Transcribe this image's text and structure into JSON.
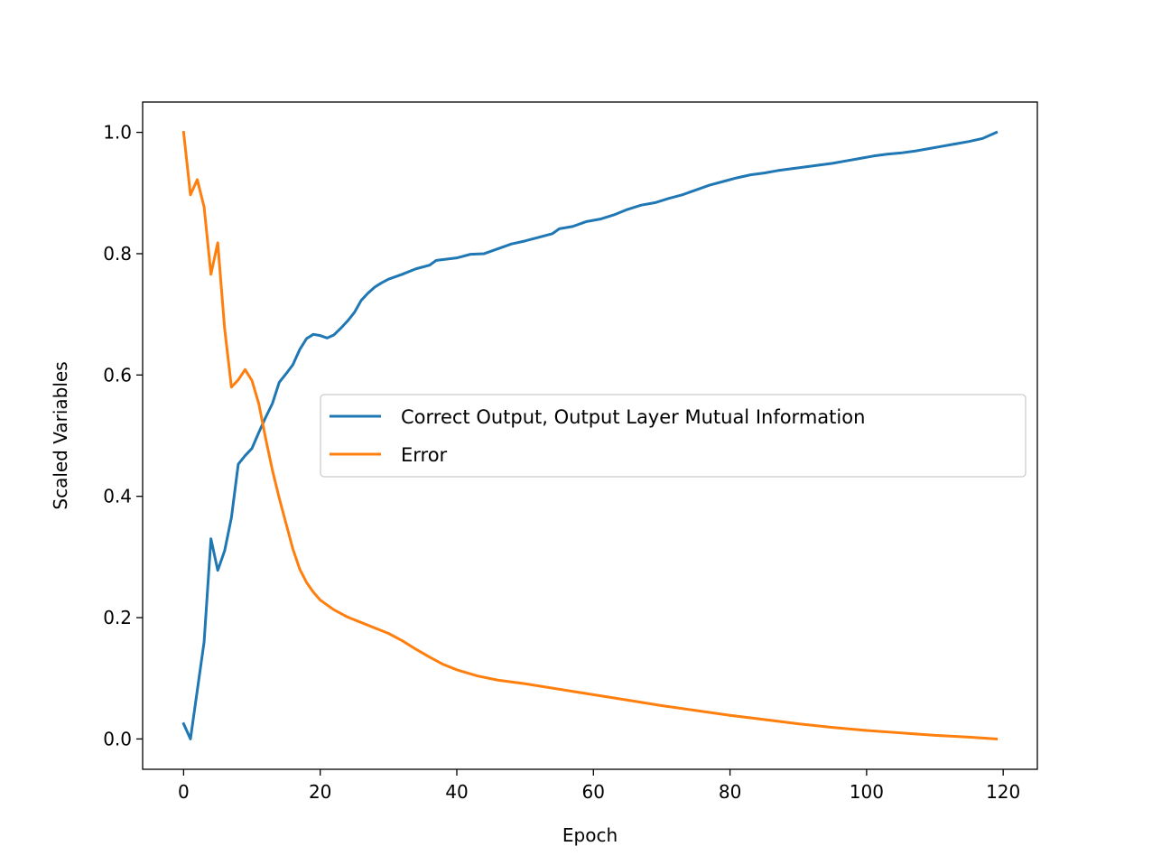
{
  "chart_data": {
    "type": "line",
    "title": "",
    "xlabel": "Epoch",
    "ylabel": "Scaled Variables",
    "xlim": [
      -6,
      125
    ],
    "ylim": [
      -0.05,
      1.05
    ],
    "xticks": [
      0,
      20,
      40,
      60,
      80,
      100,
      120
    ],
    "xtick_labels": [
      "0",
      "20",
      "40",
      "60",
      "80",
      "100",
      "120"
    ],
    "yticks": [
      0.0,
      0.2,
      0.4,
      0.6,
      0.8,
      1.0
    ],
    "ytick_labels": [
      "0.0",
      "0.2",
      "0.4",
      "0.6",
      "0.8",
      "1.0"
    ],
    "grid": false,
    "legend_position": "center-right",
    "series": [
      {
        "name": "Correct Output, Output Layer Mutual Information",
        "color": "#1f77b4",
        "points": [
          [
            0,
            0.025
          ],
          [
            1,
            0.0
          ],
          [
            2,
            0.08
          ],
          [
            3,
            0.16
          ],
          [
            4,
            0.33
          ],
          [
            5,
            0.278
          ],
          [
            6,
            0.31
          ],
          [
            7,
            0.365
          ],
          [
            8,
            0.453
          ],
          [
            9,
            0.467
          ],
          [
            10,
            0.479
          ],
          [
            11,
            0.505
          ],
          [
            12,
            0.53
          ],
          [
            13,
            0.553
          ],
          [
            14,
            0.588
          ],
          [
            15,
            0.602
          ],
          [
            16,
            0.617
          ],
          [
            17,
            0.642
          ],
          [
            18,
            0.66
          ],
          [
            19,
            0.667
          ],
          [
            20,
            0.665
          ],
          [
            21,
            0.661
          ],
          [
            22,
            0.666
          ],
          [
            23,
            0.677
          ],
          [
            24,
            0.689
          ],
          [
            25,
            0.703
          ],
          [
            26,
            0.723
          ],
          [
            27,
            0.735
          ],
          [
            28,
            0.745
          ],
          [
            29,
            0.752
          ],
          [
            30,
            0.758
          ],
          [
            32,
            0.766
          ],
          [
            34,
            0.775
          ],
          [
            36,
            0.781
          ],
          [
            37,
            0.789
          ],
          [
            40,
            0.793
          ],
          [
            42,
            0.799
          ],
          [
            44,
            0.8
          ],
          [
            46,
            0.808
          ],
          [
            48,
            0.816
          ],
          [
            50,
            0.821
          ],
          [
            52,
            0.827
          ],
          [
            54,
            0.833
          ],
          [
            55,
            0.841
          ],
          [
            57,
            0.845
          ],
          [
            59,
            0.853
          ],
          [
            61,
            0.857
          ],
          [
            63,
            0.864
          ],
          [
            65,
            0.873
          ],
          [
            67,
            0.88
          ],
          [
            69,
            0.884
          ],
          [
            71,
            0.891
          ],
          [
            73,
            0.897
          ],
          [
            75,
            0.905
          ],
          [
            77,
            0.913
          ],
          [
            79,
            0.919
          ],
          [
            81,
            0.925
          ],
          [
            83,
            0.93
          ],
          [
            85,
            0.933
          ],
          [
            87,
            0.937
          ],
          [
            89,
            0.94
          ],
          [
            91,
            0.943
          ],
          [
            93,
            0.946
          ],
          [
            95,
            0.949
          ],
          [
            97,
            0.953
          ],
          [
            99,
            0.957
          ],
          [
            101,
            0.961
          ],
          [
            103,
            0.964
          ],
          [
            105,
            0.966
          ],
          [
            107,
            0.969
          ],
          [
            109,
            0.973
          ],
          [
            111,
            0.977
          ],
          [
            113,
            0.981
          ],
          [
            115,
            0.985
          ],
          [
            117,
            0.99
          ],
          [
            119,
            1.0
          ]
        ]
      },
      {
        "name": "Error",
        "color": "#ff7f0e",
        "points": [
          [
            0,
            1.0
          ],
          [
            1,
            0.897
          ],
          [
            2,
            0.922
          ],
          [
            3,
            0.877
          ],
          [
            4,
            0.766
          ],
          [
            5,
            0.818
          ],
          [
            6,
            0.677
          ],
          [
            7,
            0.58
          ],
          [
            8,
            0.592
          ],
          [
            9,
            0.609
          ],
          [
            10,
            0.591
          ],
          [
            11,
            0.553
          ],
          [
            12,
            0.496
          ],
          [
            13,
            0.443
          ],
          [
            14,
            0.397
          ],
          [
            15,
            0.355
          ],
          [
            16,
            0.313
          ],
          [
            17,
            0.28
          ],
          [
            18,
            0.258
          ],
          [
            19,
            0.242
          ],
          [
            20,
            0.229
          ],
          [
            22,
            0.213
          ],
          [
            24,
            0.201
          ],
          [
            26,
            0.192
          ],
          [
            28,
            0.183
          ],
          [
            30,
            0.174
          ],
          [
            32,
            0.162
          ],
          [
            34,
            0.148
          ],
          [
            36,
            0.135
          ],
          [
            38,
            0.123
          ],
          [
            40,
            0.114
          ],
          [
            43,
            0.104
          ],
          [
            46,
            0.097
          ],
          [
            50,
            0.091
          ],
          [
            55,
            0.082
          ],
          [
            60,
            0.073
          ],
          [
            65,
            0.064
          ],
          [
            70,
            0.055
          ],
          [
            75,
            0.047
          ],
          [
            80,
            0.039
          ],
          [
            85,
            0.032
          ],
          [
            90,
            0.025
          ],
          [
            95,
            0.019
          ],
          [
            100,
            0.014
          ],
          [
            105,
            0.01
          ],
          [
            110,
            0.006
          ],
          [
            115,
            0.003
          ],
          [
            119,
            0.0
          ]
        ]
      }
    ]
  }
}
